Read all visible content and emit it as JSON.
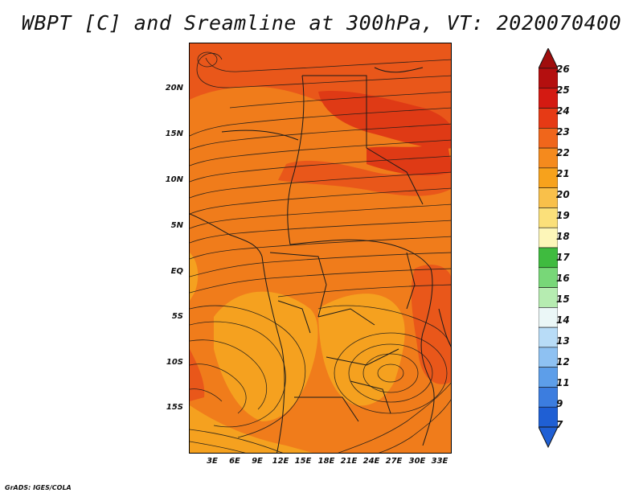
{
  "title": "WBPT [C] and Sreamline at 300hPa, VT: 2020070400",
  "credit": "GrADS: IGES/COLA",
  "map": {
    "lat_labels": [
      "20N",
      "15N",
      "10N",
      "5N",
      "EQ",
      "5S",
      "10S",
      "15S"
    ],
    "lon_labels": [
      "3E",
      "6E",
      "9E",
      "12E",
      "15E",
      "18E",
      "21E",
      "24E",
      "27E",
      "30E",
      "33E"
    ],
    "fill_colors": {
      "level_21": "#f5a11f",
      "level_22": "#f07c1b",
      "level_23": "#e9571a",
      "level_24": "#df3a15"
    },
    "line_color": "#1a1a1a"
  },
  "colorbar": {
    "labels": [
      "26",
      "25",
      "24",
      "23",
      "22",
      "21",
      "20",
      "19",
      "18",
      "17",
      "16",
      "15",
      "14",
      "13",
      "12",
      "11",
      "9",
      "7"
    ],
    "colors": [
      "#b40f0f",
      "#d41a12",
      "#e63a15",
      "#f0661b",
      "#f58a1d",
      "#f7a21c",
      "#f9c04a",
      "#fbe07a",
      "#fdf6b9",
      "#3fbb3f",
      "#78d778",
      "#b6ecb1",
      "#ebf7f7",
      "#b8dcf7",
      "#8ec1f2",
      "#5d9ee9",
      "#3c7ddf",
      "#1f5fd4"
    ]
  }
}
